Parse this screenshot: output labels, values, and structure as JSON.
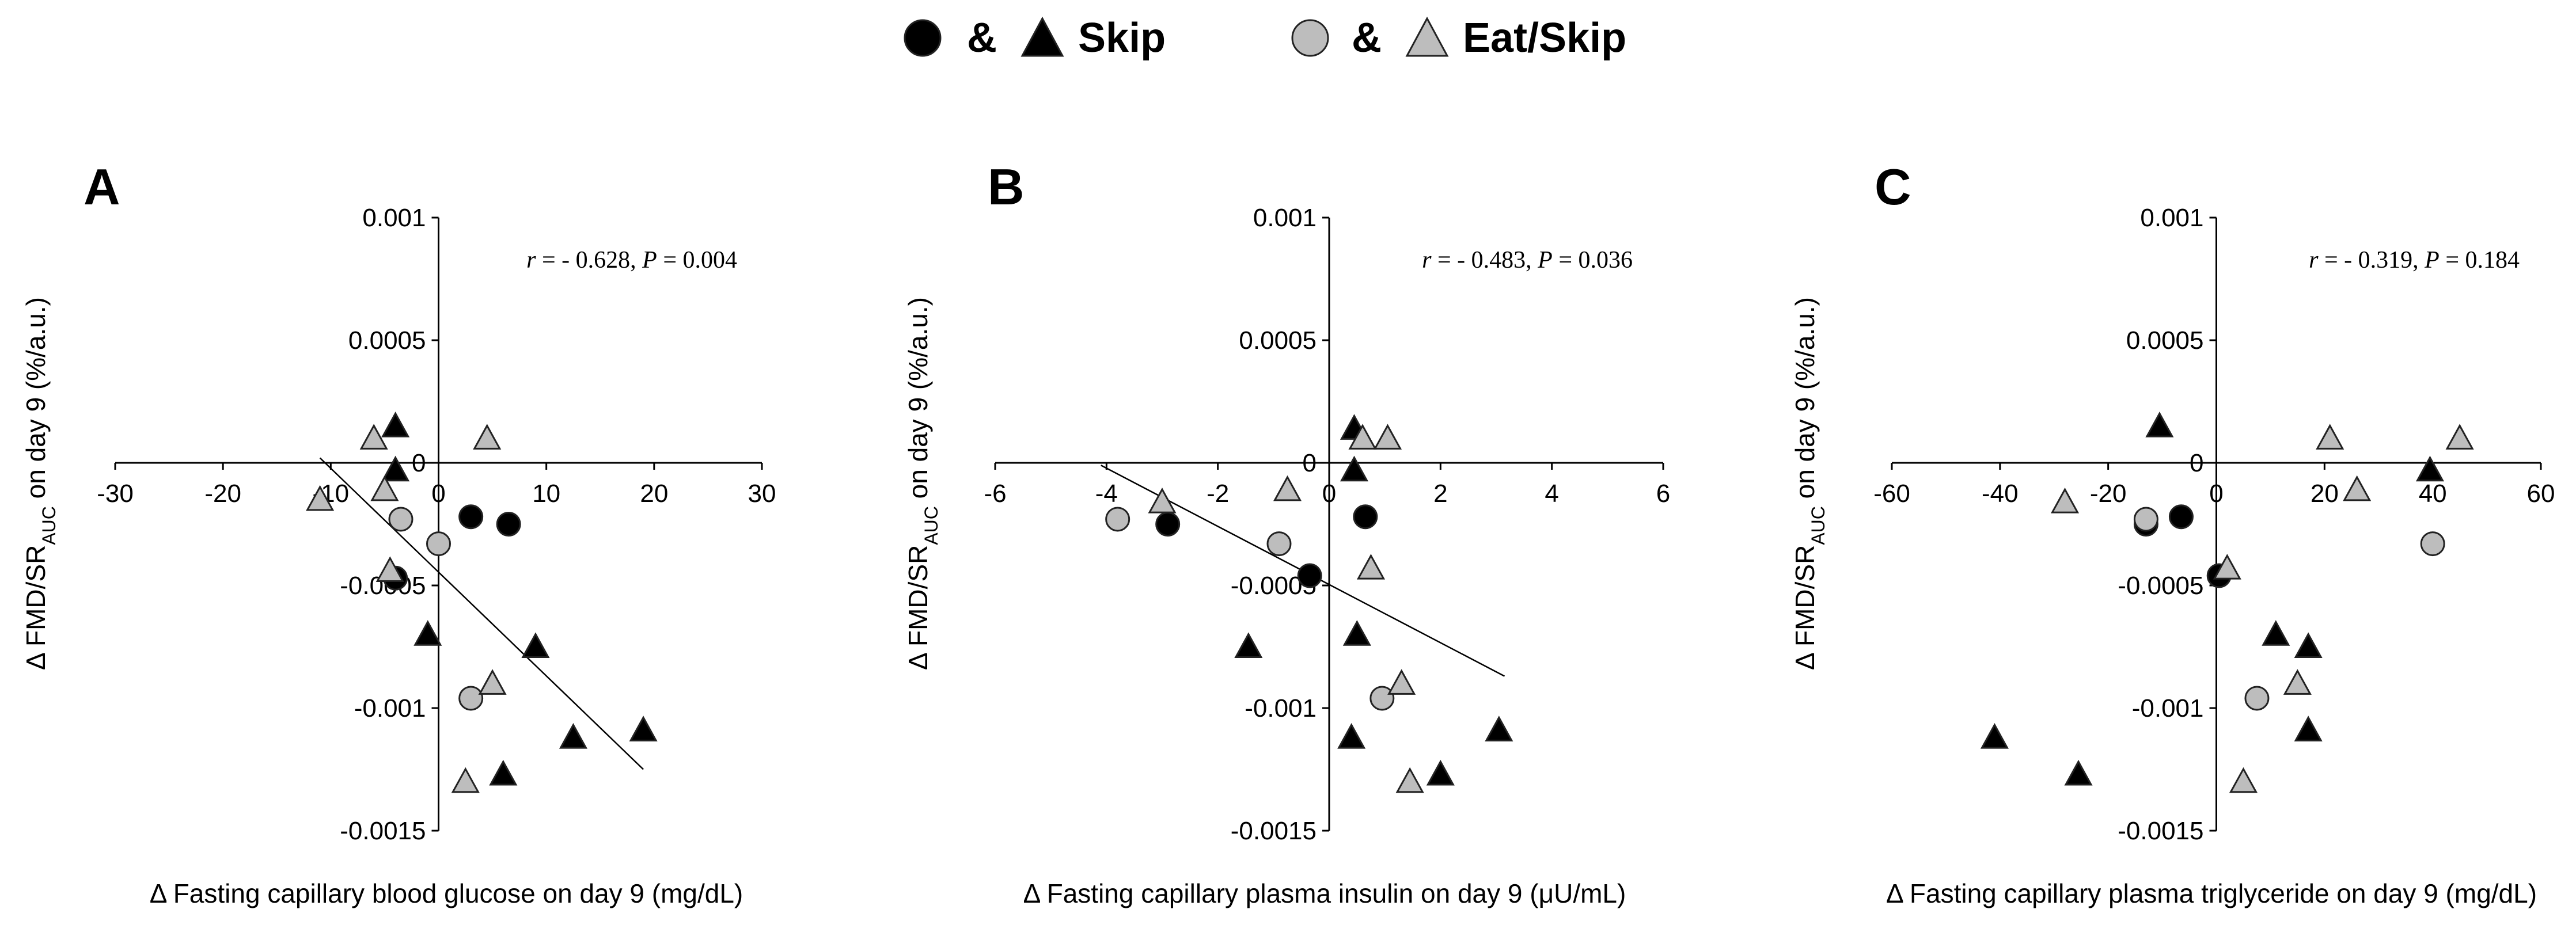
{
  "legend": {
    "group1_joiner": "&",
    "group1_label": "Skip",
    "group2_joiner": "&",
    "group2_label": "Eat/Skip",
    "colors": {
      "skip": "#000000",
      "eat_skip": "#bdbdbd",
      "edge": "#222222"
    }
  },
  "chart_data": [
    {
      "type": "scatter",
      "panel": "A",
      "xlabel": "Δ Fasting capillary blood glucose on day 9 (mg/dL)",
      "ylabel_main": "Δ FMD/SR",
      "ylabel_sub": "AUC",
      "ylabel_tail": " on day 9 (%/a.u.)",
      "xlim": [
        -30,
        30
      ],
      "ylim": [
        -0.0015,
        0.001
      ],
      "xticks": [
        "-30",
        "-20",
        "-10",
        "0",
        "10",
        "20",
        "30"
      ],
      "yticks": [
        "0.001",
        "0.0005",
        "0",
        "-0.0005",
        "-0.001",
        "-0.0015"
      ],
      "stat_r_value": "- 0.628",
      "stat_p_value": "0.004",
      "regression": {
        "x1": -11,
        "y1": 2e-05,
        "x2": 19,
        "y2": -0.00125
      },
      "series": [
        {
          "group": "Skip",
          "marker": "circle",
          "points": [
            [
              -4,
              -0.00047
            ],
            [
              3,
              -0.00022
            ],
            [
              6.5,
              -0.00025
            ]
          ]
        },
        {
          "group": "Skip",
          "marker": "triangle",
          "points": [
            [
              -4,
              0.00015
            ],
            [
              -4,
              -3e-05
            ],
            [
              -1,
              -0.0007
            ],
            [
              9,
              -0.00075
            ],
            [
              12.5,
              -0.00112
            ],
            [
              6,
              -0.00127
            ],
            [
              19,
              -0.00109
            ]
          ]
        },
        {
          "group": "Eat/Skip",
          "marker": "circle",
          "points": [
            [
              -3.5,
              -0.00023
            ],
            [
              0,
              -0.00033
            ],
            [
              3,
              -0.00096
            ]
          ]
        },
        {
          "group": "Eat/Skip",
          "marker": "triangle",
          "points": [
            [
              -6,
              0.0001
            ],
            [
              4.5,
              0.0001
            ],
            [
              -5,
              -0.00011
            ],
            [
              -11,
              -0.00015
            ],
            [
              -4.5,
              -0.00044
            ],
            [
              5,
              -0.0009
            ],
            [
              2.5,
              -0.0013
            ]
          ]
        }
      ]
    },
    {
      "type": "scatter",
      "panel": "B",
      "xlabel": "Δ Fasting capillary plasma insulin on day 9 (μU/mL)",
      "ylabel_main": "Δ FMD/SR",
      "ylabel_sub": "AUC",
      "ylabel_tail": " on day 9 (%/a.u.)",
      "xlim": [
        -6,
        6
      ],
      "ylim": [
        -0.0015,
        0.001
      ],
      "xticks": [
        "-6",
        "-4",
        "-2",
        "0",
        "2",
        "4",
        "6"
      ],
      "yticks": [
        "0.001",
        "0.0005",
        "0",
        "-0.0005",
        "-0.001",
        "-0.0015"
      ],
      "stat_r_value": "- 0.483",
      "stat_p_value": "0.036",
      "regression": {
        "x1": -4.1,
        "y1": -1e-05,
        "x2": 3.15,
        "y2": -0.00087
      },
      "series": [
        {
          "group": "Skip",
          "marker": "circle",
          "points": [
            [
              -2.9,
              -0.00025
            ],
            [
              -0.35,
              -0.00046
            ],
            [
              0.65,
              -0.00022
            ]
          ]
        },
        {
          "group": "Skip",
          "marker": "triangle",
          "points": [
            [
              0.45,
              0.00014
            ],
            [
              0.45,
              -3e-05
            ],
            [
              0.5,
              -0.0007
            ],
            [
              -1.45,
              -0.00075
            ],
            [
              0.4,
              -0.00112
            ],
            [
              2,
              -0.00127
            ],
            [
              3.05,
              -0.00109
            ]
          ]
        },
        {
          "group": "Eat/Skip",
          "marker": "circle",
          "points": [
            [
              -3.8,
              -0.00023
            ],
            [
              -0.9,
              -0.00033
            ],
            [
              0.95,
              -0.00096
            ]
          ]
        },
        {
          "group": "Eat/Skip",
          "marker": "triangle",
          "points": [
            [
              0.6,
              0.0001
            ],
            [
              1.05,
              0.0001
            ],
            [
              -0.75,
              -0.00011
            ],
            [
              -3,
              -0.00016
            ],
            [
              0.75,
              -0.00043
            ],
            [
              1.3,
              -0.0009
            ],
            [
              1.45,
              -0.0013
            ]
          ]
        }
      ]
    },
    {
      "type": "scatter",
      "panel": "C",
      "xlabel": "Δ Fasting capillary plasma triglyceride on day 9 (mg/dL)",
      "ylabel_main": "Δ FMD/SR",
      "ylabel_sub": "AUC",
      "ylabel_tail": " on day 9 (%/a.u.)",
      "xlim": [
        -60,
        60
      ],
      "ylim": [
        -0.0015,
        0.001
      ],
      "xticks": [
        "-60",
        "-40",
        "-20",
        "0",
        "20",
        "40",
        "60"
      ],
      "yticks": [
        "0.001",
        "0.0005",
        "0",
        "-0.0005",
        "-0.001",
        "-0.0015"
      ],
      "stat_r_value": "- 0.319",
      "stat_p_value": "0.184",
      "series": [
        {
          "group": "Skip",
          "marker": "circle",
          "points": [
            [
              -13,
              -0.00025
            ],
            [
              -6.5,
              -0.00022
            ],
            [
              0.5,
              -0.00046
            ]
          ]
        },
        {
          "group": "Skip",
          "marker": "triangle",
          "points": [
            [
              -10.5,
              0.00015
            ],
            [
              39.5,
              -3e-05
            ],
            [
              11,
              -0.0007
            ],
            [
              17,
              -0.00075
            ],
            [
              17,
              -0.00109
            ],
            [
              -25.5,
              -0.00127
            ],
            [
              -41,
              -0.00112
            ]
          ]
        },
        {
          "group": "Eat/Skip",
          "marker": "circle",
          "points": [
            [
              -13,
              -0.00023
            ],
            [
              40,
              -0.00033
            ],
            [
              7.5,
              -0.00096
            ]
          ]
        },
        {
          "group": "Eat/Skip",
          "marker": "triangle",
          "points": [
            [
              21,
              0.0001
            ],
            [
              45,
              0.0001
            ],
            [
              26,
              -0.00011
            ],
            [
              -28,
              -0.00016
            ],
            [
              2,
              -0.00043
            ],
            [
              15,
              -0.0009
            ],
            [
              5,
              -0.0013
            ]
          ]
        }
      ]
    }
  ]
}
